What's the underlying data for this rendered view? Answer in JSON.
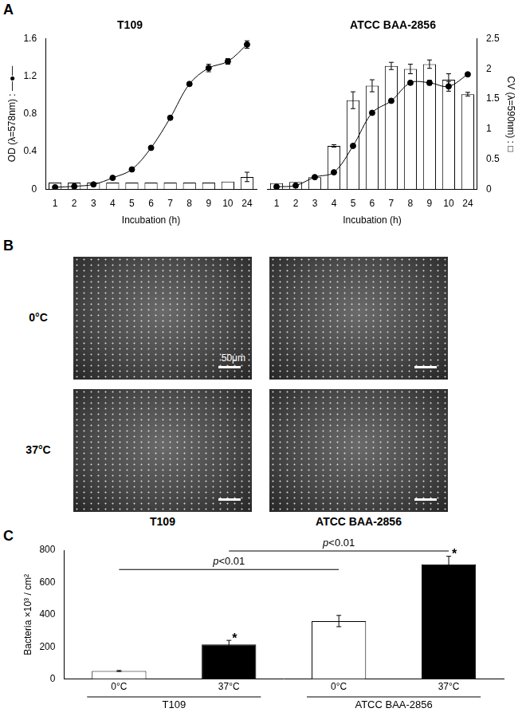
{
  "panel_labels": [
    "A",
    "B",
    "C"
  ],
  "images": {
    "rows": [
      "0°C",
      "37°C"
    ],
    "columns": [
      "T109",
      "ATCC BAA-2856"
    ],
    "scale_bar": "50μm"
  },
  "chart_data": [
    {
      "type": "bar",
      "title": "T109",
      "x_label": "Incubation (h)",
      "y_label": "OD (λ=578nm) : —●—",
      "categories": [
        "1",
        "2",
        "3",
        "4",
        "5",
        "6",
        "7",
        "8",
        "9",
        "10",
        "24"
      ],
      "series": [
        {
          "type": "line",
          "color": "#000000",
          "marker": "circle",
          "values": [
            0.02,
            0.03,
            0.05,
            0.12,
            0.21,
            0.44,
            0.76,
            1.12,
            1.29,
            1.36,
            1.54
          ],
          "errors": [
            null,
            null,
            null,
            null,
            null,
            null,
            null,
            null,
            0.04,
            0.03,
            0.04
          ]
        },
        {
          "type": "bar",
          "color": "#ffffff",
          "values": [
            0.07,
            0.07,
            0.07,
            0.07,
            0.07,
            0.07,
            0.07,
            0.07,
            0.07,
            0.08,
            0.13
          ],
          "errors": [
            null,
            null,
            null,
            null,
            null,
            null,
            null,
            null,
            null,
            null,
            0.05
          ]
        }
      ],
      "ylim": [
        0,
        1.6
      ],
      "yticks": [
        0,
        0.4,
        0.8,
        1.2,
        1.6
      ],
      "grid": false
    },
    {
      "type": "bar",
      "title": "ATCC BAA-2856",
      "x_label": "Incubation (h)",
      "y2_label": "CV (λ=590nm) : □",
      "categories": [
        "1",
        "2",
        "3",
        "4",
        "5",
        "6",
        "7",
        "8",
        "9",
        "10",
        "24"
      ],
      "series": [
        {
          "type": "line",
          "color": "#000000",
          "marker": "circle",
          "axis": "y2",
          "values": [
            0.04,
            0.06,
            0.2,
            0.28,
            0.72,
            1.27,
            1.47,
            1.77,
            1.77,
            1.71,
            1.91
          ],
          "errors": [
            null,
            null,
            null,
            null,
            null,
            null,
            null,
            null,
            0.04,
            0.08,
            null
          ]
        },
        {
          "type": "bar",
          "color": "#ffffff",
          "axis": "y2",
          "values": [
            0.1,
            0.12,
            0.2,
            0.72,
            1.48,
            1.72,
            2.05,
            2.0,
            2.08,
            1.82,
            1.58
          ],
          "errors": [
            null,
            null,
            null,
            0.02,
            0.14,
            0.1,
            0.06,
            0.08,
            0.07,
            0.1,
            0.03
          ]
        }
      ],
      "y2lim": [
        0,
        2.5
      ],
      "y2ticks": [
        0,
        0.5,
        1,
        1.5,
        2,
        2.5
      ],
      "grid": false
    },
    {
      "type": "bar",
      "y_label": "Bacteria ×10³ / cm²",
      "categories": [
        "0°C",
        "37°C",
        "0°C",
        "37°C"
      ],
      "groups": [
        {
          "label": "T109",
          "from": 0,
          "to": 1
        },
        {
          "label": "ATCC BAA-2856",
          "from": 2,
          "to": 3
        }
      ],
      "values": [
        50,
        215,
        360,
        712
      ],
      "errors": [
        3,
        25,
        35,
        50
      ],
      "colors": [
        "#ffffff",
        "#000000",
        "#ffffff",
        "#000000"
      ],
      "stars": [
        null,
        "*",
        null,
        "*"
      ],
      "brackets": [
        {
          "from": 0,
          "to": 2,
          "y": 680,
          "text": "p<0.01"
        },
        {
          "from": 1,
          "to": 3,
          "y": 795,
          "text": "p<0.01"
        }
      ],
      "ylim": [
        0,
        800
      ],
      "yticks": [
        0,
        200,
        400,
        600,
        800
      ],
      "grid": false
    }
  ]
}
